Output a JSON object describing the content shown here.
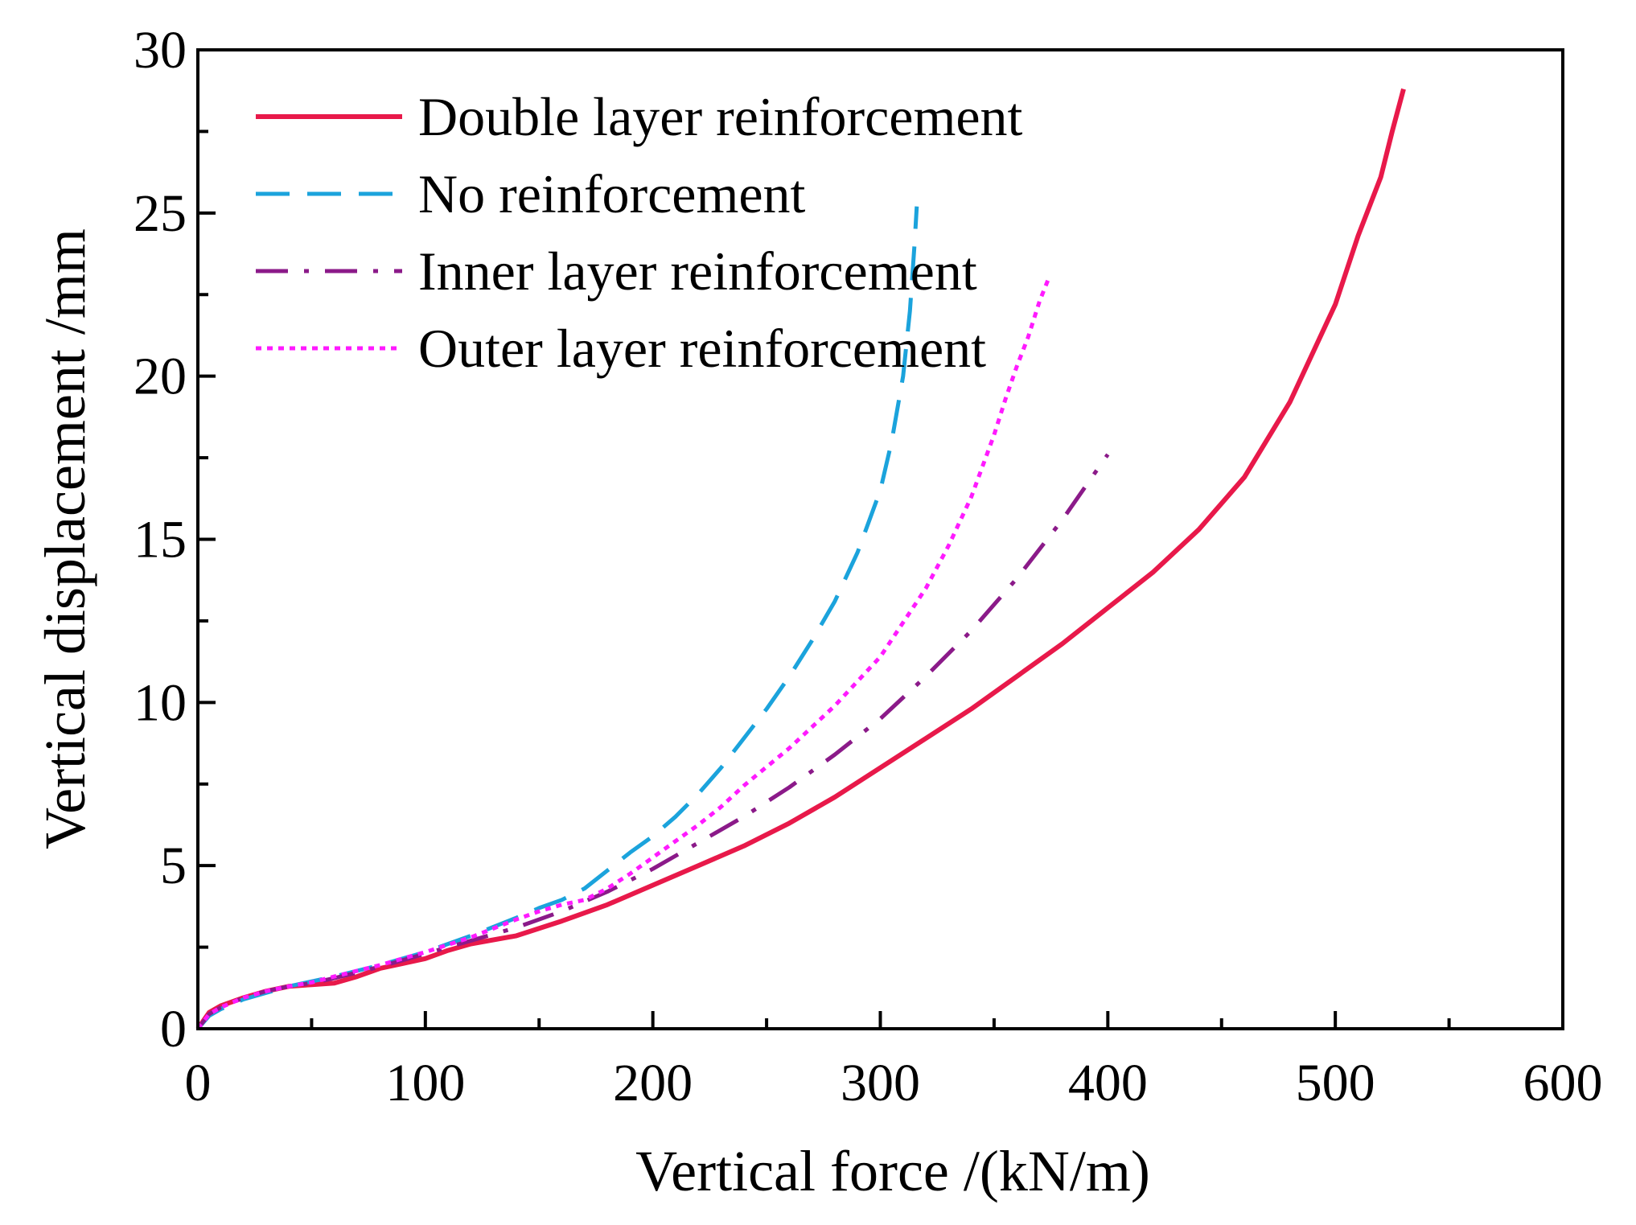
{
  "chart_data": {
    "type": "line",
    "title": "",
    "xlabel": "Vertical force /(kN/m)",
    "ylabel": "Vertical displacement /mm",
    "xlim": [
      0,
      600
    ],
    "ylim": [
      0,
      30
    ],
    "xticks": [
      0,
      100,
      200,
      300,
      400,
      500,
      600
    ],
    "yticks": [
      0,
      5,
      10,
      15,
      20,
      25,
      30
    ],
    "grid": false,
    "legend_position": "top-left",
    "series": [
      {
        "name": "Double layer reinforcement",
        "color": "#e8194a",
        "style": "solid",
        "x": [
          0,
          5,
          10,
          20,
          30,
          40,
          50,
          60,
          70,
          80,
          90,
          100,
          110,
          120,
          140,
          160,
          180,
          200,
          220,
          240,
          260,
          280,
          300,
          320,
          340,
          360,
          380,
          400,
          420,
          440,
          460,
          480,
          500,
          510,
          520,
          525,
          530
        ],
        "y": [
          0,
          0.5,
          0.7,
          0.95,
          1.15,
          1.3,
          1.35,
          1.4,
          1.6,
          1.85,
          2.0,
          2.15,
          2.4,
          2.6,
          2.85,
          3.3,
          3.8,
          4.4,
          5.0,
          5.6,
          6.3,
          7.1,
          8.0,
          8.9,
          9.8,
          10.8,
          11.8,
          12.9,
          14.0,
          15.3,
          16.9,
          19.2,
          22.2,
          24.3,
          26.1,
          27.5,
          28.8
        ]
      },
      {
        "name": "No reinforcement",
        "color": "#1ba3dc",
        "style": "dashed",
        "x": [
          0,
          5,
          10,
          20,
          30,
          40,
          50,
          60,
          80,
          100,
          120,
          140,
          150,
          160,
          170,
          180,
          190,
          200,
          210,
          220,
          230,
          240,
          250,
          260,
          270,
          280,
          290,
          300,
          305,
          310,
          313,
          315,
          316
        ],
        "y": [
          0,
          0.4,
          0.6,
          0.9,
          1.1,
          1.3,
          1.45,
          1.6,
          1.95,
          2.35,
          2.85,
          3.4,
          3.7,
          3.95,
          4.3,
          4.85,
          5.4,
          5.9,
          6.5,
          7.2,
          8.0,
          8.9,
          9.8,
          10.8,
          11.9,
          13.1,
          14.6,
          16.5,
          18.0,
          20.0,
          22.0,
          24.0,
          25.2
        ]
      },
      {
        "name": "Inner layer reinforcement",
        "color": "#8b1a89",
        "style": "dashdot",
        "x": [
          0,
          5,
          10,
          20,
          30,
          40,
          50,
          60,
          80,
          100,
          120,
          140,
          160,
          180,
          200,
          220,
          240,
          260,
          280,
          300,
          320,
          340,
          360,
          380,
          390,
          400
        ],
        "y": [
          0,
          0.45,
          0.65,
          0.95,
          1.15,
          1.3,
          1.4,
          1.55,
          1.9,
          2.3,
          2.7,
          3.1,
          3.6,
          4.2,
          4.9,
          5.7,
          6.5,
          7.4,
          8.4,
          9.5,
          10.8,
          12.2,
          13.8,
          15.6,
          16.6,
          17.6
        ]
      },
      {
        "name": "Outer layer reinforcement",
        "color": "#ff1aff",
        "style": "dotted",
        "x": [
          0,
          5,
          10,
          20,
          30,
          40,
          50,
          60,
          80,
          100,
          120,
          140,
          150,
          160,
          170,
          180,
          190,
          200,
          210,
          220,
          230,
          240,
          260,
          280,
          300,
          320,
          330,
          340,
          350,
          355,
          360,
          365,
          370,
          374
        ],
        "y": [
          0,
          0.45,
          0.65,
          0.95,
          1.15,
          1.3,
          1.42,
          1.6,
          1.95,
          2.35,
          2.8,
          3.35,
          3.6,
          3.8,
          3.95,
          4.3,
          4.75,
          5.25,
          5.75,
          6.25,
          6.8,
          7.45,
          8.6,
          9.9,
          11.4,
          13.5,
          14.8,
          16.3,
          18.2,
          19.3,
          20.3,
          21.2,
          22.3,
          23.0
        ]
      }
    ]
  }
}
